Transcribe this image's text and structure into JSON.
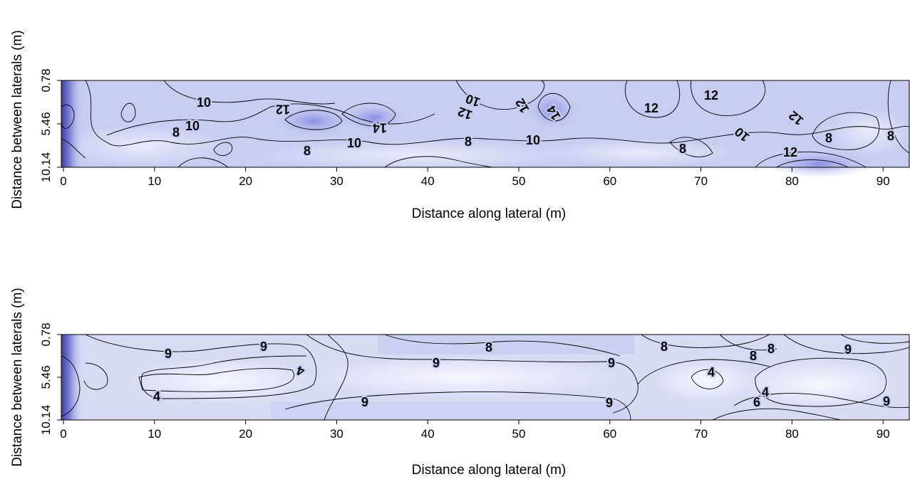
{
  "chart_data": [
    {
      "type": "heatmap",
      "title": "",
      "xlabel": "Distance along lateral (m)",
      "ylabel": "Distance between laterals (m)",
      "xlim": [
        0,
        91
      ],
      "x_ticks": [
        "0",
        "10",
        "20",
        "30",
        "40",
        "50",
        "60",
        "70",
        "80",
        "90"
      ],
      "y_ticks": [
        "0.78",
        "5.46",
        "10.14"
      ],
      "colors": {
        "low": "#eeeffb",
        "mid": "#c9ccf1",
        "high": "#7d82e0"
      },
      "contour_labels": [
        {
          "text": "10",
          "x": 26,
          "y": 1.6
        },
        {
          "text": "12",
          "x": 37,
          "y": 2.8,
          "rotate": 180
        },
        {
          "text": "10",
          "x": 19,
          "y": 5.2
        },
        {
          "text": "8",
          "x": 16,
          "y": 6.0
        },
        {
          "text": "14",
          "x": 41,
          "y": 5.4,
          "rotate": 180
        },
        {
          "text": "10",
          "x": 47,
          "y": 7.0
        },
        {
          "text": "8",
          "x": 40,
          "y": 8.9
        },
        {
          "text": "10",
          "x": 63,
          "y": 1.8,
          "rotate": 200
        },
        {
          "text": "12",
          "x": 60,
          "y": 3.2,
          "rotate": 200
        },
        {
          "text": "12",
          "x": 67,
          "y": 2.8,
          "rotate": 240
        },
        {
          "text": "14",
          "x": 71,
          "y": 3.6,
          "rotate": 240
        },
        {
          "text": "8",
          "x": 61,
          "y": 7.0
        },
        {
          "text": "10",
          "x": 70,
          "y": 7.4
        },
        {
          "text": "12",
          "x": 85,
          "y": 3.2
        },
        {
          "text": "12",
          "x": 98,
          "y": 1.6
        },
        {
          "text": "8",
          "x": 89,
          "y": 8.2
        },
        {
          "text": "10",
          "x": 95,
          "y": 6.3,
          "rotate": 220
        },
        {
          "text": "12",
          "x": 103,
          "y": 3.7,
          "rotate": 220
        },
        {
          "text": "12",
          "x": 104,
          "y": 8.5
        },
        {
          "text": "8",
          "x": 107,
          "y": 6.4
        },
        {
          "text": "8",
          "x": 115,
          "y": 6.5
        }
      ]
    },
    {
      "type": "heatmap",
      "title": "",
      "xlabel": "Distance along lateral (m)",
      "ylabel": "Distance between laterals (m)",
      "xlim": [
        0,
        91
      ],
      "x_ticks": [
        "0",
        "10",
        "20",
        "30",
        "40",
        "50",
        "60",
        "70",
        "80",
        "90"
      ],
      "y_ticks": [
        "0.78",
        "5.46",
        "10.14"
      ],
      "colors": {
        "low": "#f2f3fc",
        "mid": "#d9dbf5",
        "high": "#9ea2e8"
      },
      "contour_labels": [
        {
          "text": "9",
          "x": 13,
          "y": 2.4
        },
        {
          "text": "9",
          "x": 24,
          "y": 1.4
        },
        {
          "text": "4",
          "x": 28,
          "y": 4.6,
          "rotate": 200
        },
        {
          "text": "9",
          "x": 45,
          "y": 3.3
        },
        {
          "text": "8",
          "x": 49,
          "y": 1.4
        },
        {
          "text": "9",
          "x": 63,
          "y": 3.4
        },
        {
          "text": "8",
          "x": 71,
          "y": 1.6
        },
        {
          "text": "9",
          "x": 89,
          "y": 2.1
        },
        {
          "text": "8",
          "x": 86,
          "y": 2.6
        },
        {
          "text": "8",
          "x": 84,
          "y": 1.7
        },
        {
          "text": "4",
          "x": 76,
          "y": 4.6
        },
        {
          "text": "4",
          "x": 11,
          "y": 6.5
        },
        {
          "text": "9",
          "x": 50,
          "y": 7.2
        },
        {
          "text": "9",
          "x": 63,
          "y": 7.2
        },
        {
          "text": "4",
          "x": 83,
          "y": 6.7
        },
        {
          "text": "6",
          "x": 80,
          "y": 8.4
        },
        {
          "text": "9",
          "x": 96,
          "y": 7.5
        }
      ]
    }
  ]
}
